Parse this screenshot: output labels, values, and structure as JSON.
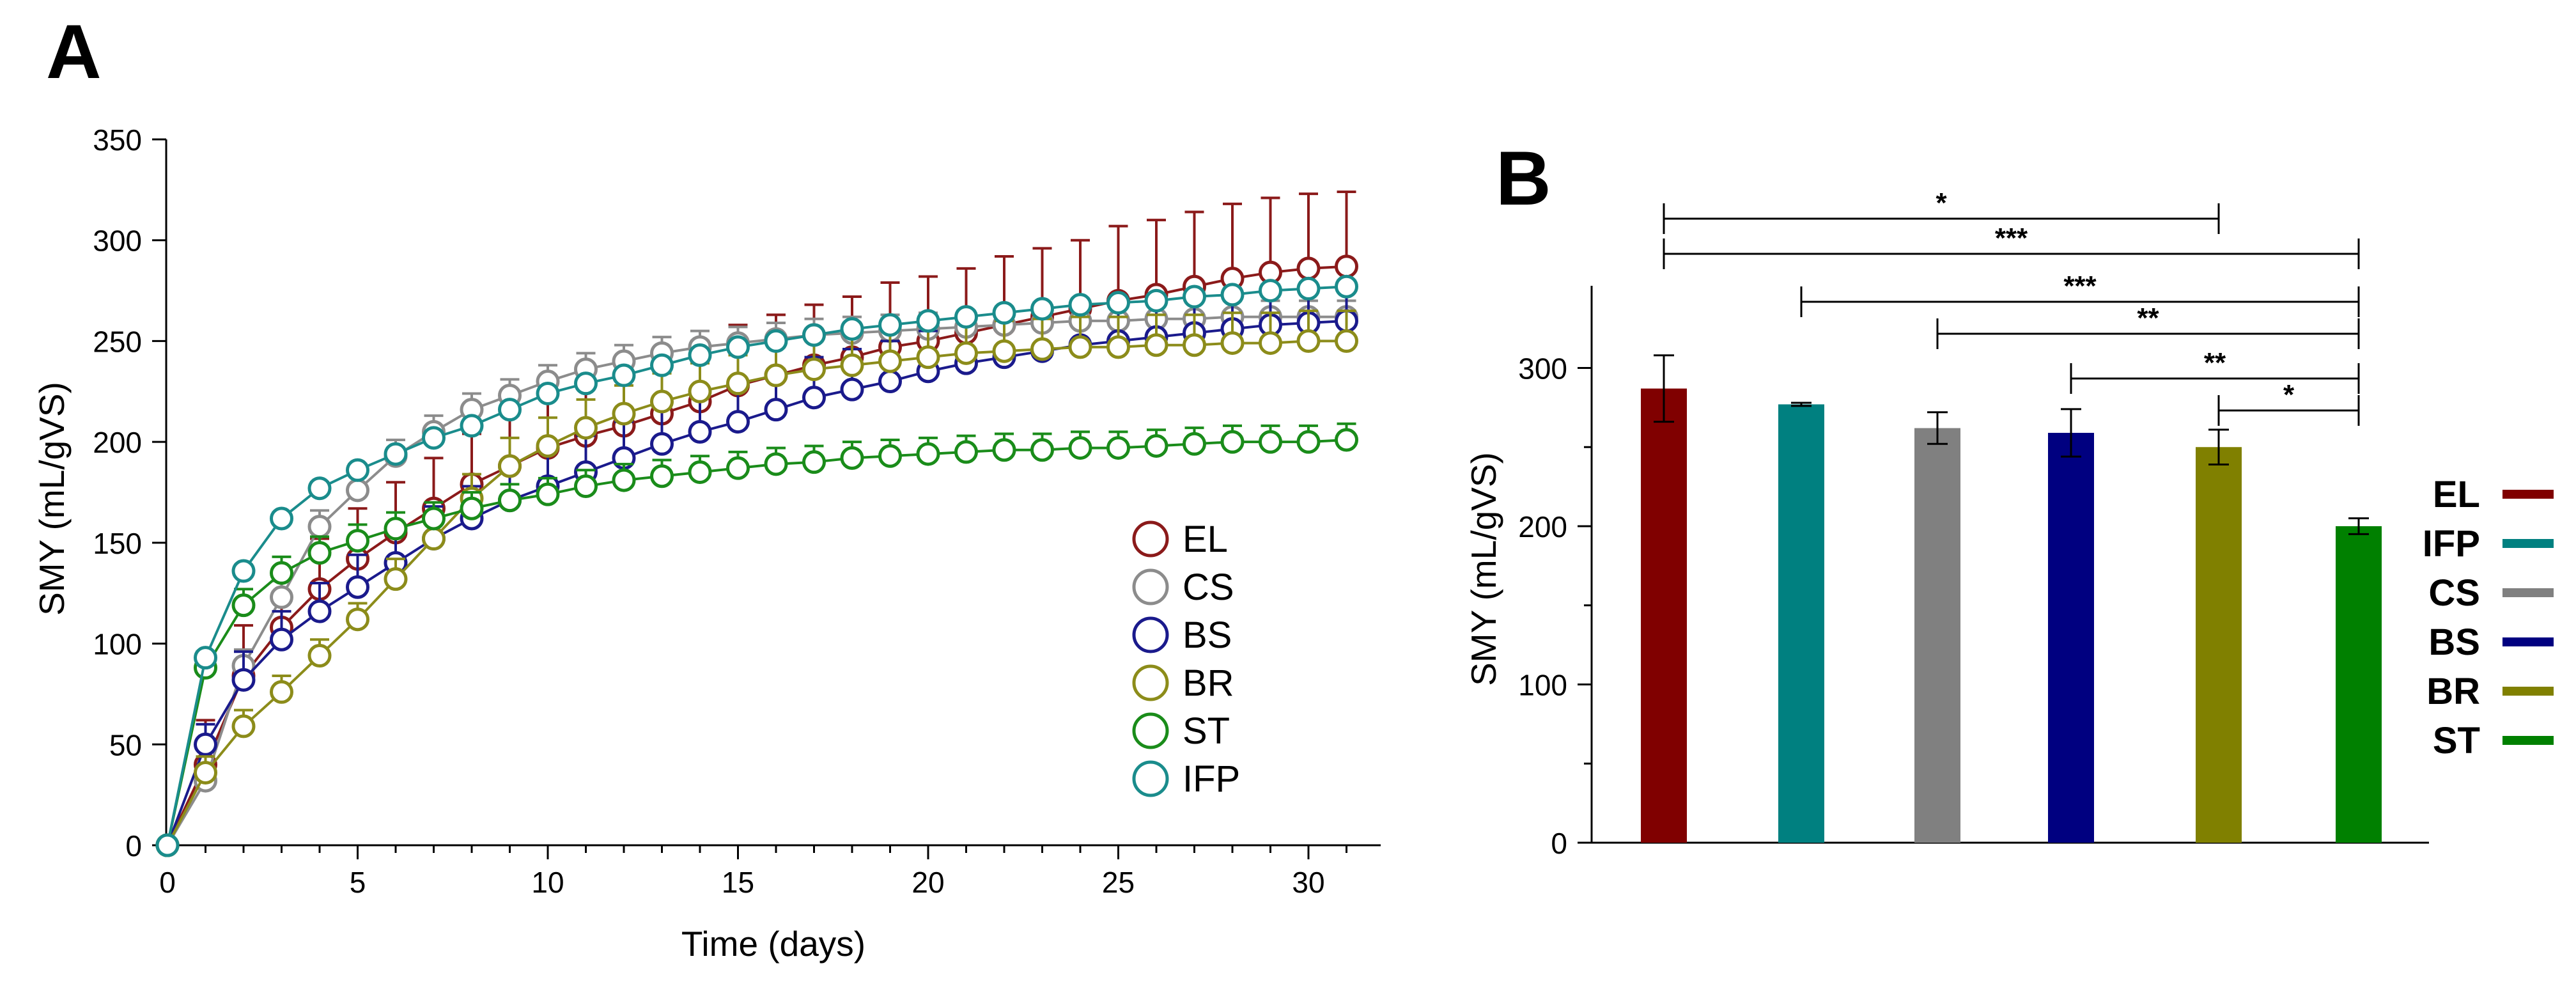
{
  "chart_data": [
    {
      "panel_label": "A",
      "type": "line",
      "xlabel": "Time (days)",
      "ylabel": "SMY (mL/gVS)",
      "xlim": [
        0,
        32
      ],
      "ylim": [
        0,
        350
      ],
      "xticks": [
        0,
        5,
        10,
        15,
        20,
        25,
        30
      ],
      "yticks": [
        0,
        50,
        100,
        150,
        200,
        250,
        300,
        350
      ],
      "x": [
        0,
        1,
        2,
        3,
        4,
        5,
        6,
        7,
        8,
        9,
        10,
        11,
        12,
        13,
        14,
        15,
        16,
        17,
        18,
        19,
        20,
        21,
        22,
        23,
        24,
        25,
        26,
        27,
        28,
        29,
        30,
        31
      ],
      "series": [
        {
          "name": "EL",
          "color": "#8b1a1a",
          "values": [
            0,
            40,
            84,
            108,
            127,
            142,
            155,
            167,
            179,
            188,
            197,
            203,
            208,
            214,
            220,
            228,
            233,
            238,
            242,
            247,
            250,
            254,
            258,
            262,
            266,
            270,
            273,
            277,
            281,
            284,
            286,
            287
          ],
          "errors": [
            0,
            22,
            25,
            25,
            25,
            25,
            25,
            25,
            25,
            25,
            28,
            28,
            28,
            28,
            30,
            30,
            30,
            30,
            30,
            32,
            32,
            32,
            34,
            34,
            34,
            37,
            37,
            37,
            37,
            37,
            37,
            37
          ]
        },
        {
          "name": "CS",
          "color": "#8c8c8c",
          "values": [
            0,
            32,
            89,
            123,
            158,
            176,
            193,
            205,
            216,
            223,
            230,
            236,
            240,
            244,
            247,
            249,
            251,
            253,
            254,
            255,
            256,
            257,
            258,
            259,
            260,
            260,
            261,
            261,
            262,
            262,
            262,
            262
          ],
          "errors": [
            0,
            6,
            8,
            8,
            8,
            8,
            8,
            8,
            8,
            8,
            8,
            8,
            8,
            8,
            8,
            8,
            8,
            8,
            8,
            8,
            8,
            8,
            8,
            8,
            8,
            8,
            8,
            8,
            8,
            8,
            8,
            8
          ]
        },
        {
          "name": "BS",
          "color": "#1a1a8c",
          "values": [
            0,
            50,
            82,
            102,
            116,
            128,
            140,
            152,
            162,
            171,
            178,
            185,
            192,
            199,
            205,
            210,
            216,
            222,
            226,
            230,
            235,
            239,
            242,
            245,
            248,
            250,
            252,
            254,
            256,
            258,
            259,
            260
          ],
          "errors": [
            0,
            10,
            14,
            14,
            14,
            16,
            16,
            16,
            16,
            16,
            18,
            18,
            18,
            18,
            18,
            20,
            20,
            20,
            20,
            20,
            20,
            20,
            20,
            20,
            20,
            20,
            20,
            20,
            20,
            20,
            20,
            20
          ]
        },
        {
          "name": "BR",
          "color": "#8c8c1a",
          "values": [
            0,
            36,
            59,
            76,
            94,
            112,
            132,
            152,
            172,
            188,
            198,
            207,
            214,
            220,
            225,
            229,
            233,
            236,
            238,
            240,
            242,
            244,
            245,
            246,
            247,
            247,
            248,
            248,
            249,
            249,
            250,
            250
          ],
          "errors": [
            0,
            8,
            8,
            8,
            8,
            8,
            10,
            10,
            12,
            14,
            14,
            14,
            14,
            14,
            14,
            14,
            14,
            14,
            15,
            15,
            15,
            15,
            15,
            15,
            15,
            15,
            15,
            15,
            15,
            15,
            15,
            15
          ]
        },
        {
          "name": "ST",
          "color": "#1a8c1a",
          "values": [
            0,
            88,
            119,
            135,
            145,
            151,
            157,
            162,
            167,
            171,
            174,
            178,
            181,
            183,
            185,
            187,
            189,
            190,
            192,
            193,
            194,
            195,
            196,
            196,
            197,
            197,
            198,
            199,
            200,
            200,
            200,
            201
          ],
          "errors": [
            0,
            8,
            8,
            8,
            8,
            8,
            8,
            8,
            8,
            8,
            8,
            8,
            8,
            8,
            8,
            8,
            8,
            8,
            8,
            8,
            8,
            8,
            8,
            8,
            8,
            8,
            8,
            8,
            8,
            8,
            8,
            8
          ]
        },
        {
          "name": "IFP",
          "color": "#1a8c8c",
          "values": [
            0,
            93,
            136,
            162,
            177,
            186,
            194,
            202,
            208,
            216,
            224,
            229,
            233,
            238,
            243,
            247,
            250,
            253,
            256,
            258,
            260,
            262,
            264,
            266,
            268,
            269,
            270,
            272,
            273,
            275,
            276,
            277
          ],
          "errors": [
            0,
            3,
            3,
            3,
            3,
            3,
            3,
            3,
            3,
            3,
            3,
            3,
            3,
            3,
            3,
            3,
            3,
            3,
            3,
            3,
            3,
            3,
            3,
            3,
            3,
            3,
            3,
            3,
            3,
            3,
            3,
            3
          ]
        }
      ]
    },
    {
      "panel_label": "B",
      "type": "bar",
      "ylabel": "SMY (mL/gVS)",
      "ylim": [
        0,
        350
      ],
      "yticks": [
        0,
        100,
        200,
        300
      ],
      "categories": [
        "EL",
        "IFP",
        "CS",
        "BS",
        "BR",
        "ST"
      ],
      "values": [
        287,
        277,
        262,
        259,
        250,
        200
      ],
      "errors": [
        21,
        1,
        10,
        15,
        11,
        5
      ],
      "colors": [
        "#800000",
        "#008080",
        "#808080",
        "#000080",
        "#808000",
        "#008000"
      ],
      "legend_order": [
        "EL",
        "IFP",
        "CS",
        "BS",
        "BR",
        "ST"
      ],
      "significance": [
        {
          "from": "EL",
          "to": "BR",
          "label": "*"
        },
        {
          "from": "EL",
          "to": "ST",
          "label": "***"
        },
        {
          "from": "IFP",
          "to": "ST",
          "label": "***"
        },
        {
          "from": "CS",
          "to": "ST",
          "label": "**"
        },
        {
          "from": "BS",
          "to": "ST",
          "label": "**"
        },
        {
          "from": "BR",
          "to": "ST",
          "label": "*"
        }
      ]
    }
  ]
}
